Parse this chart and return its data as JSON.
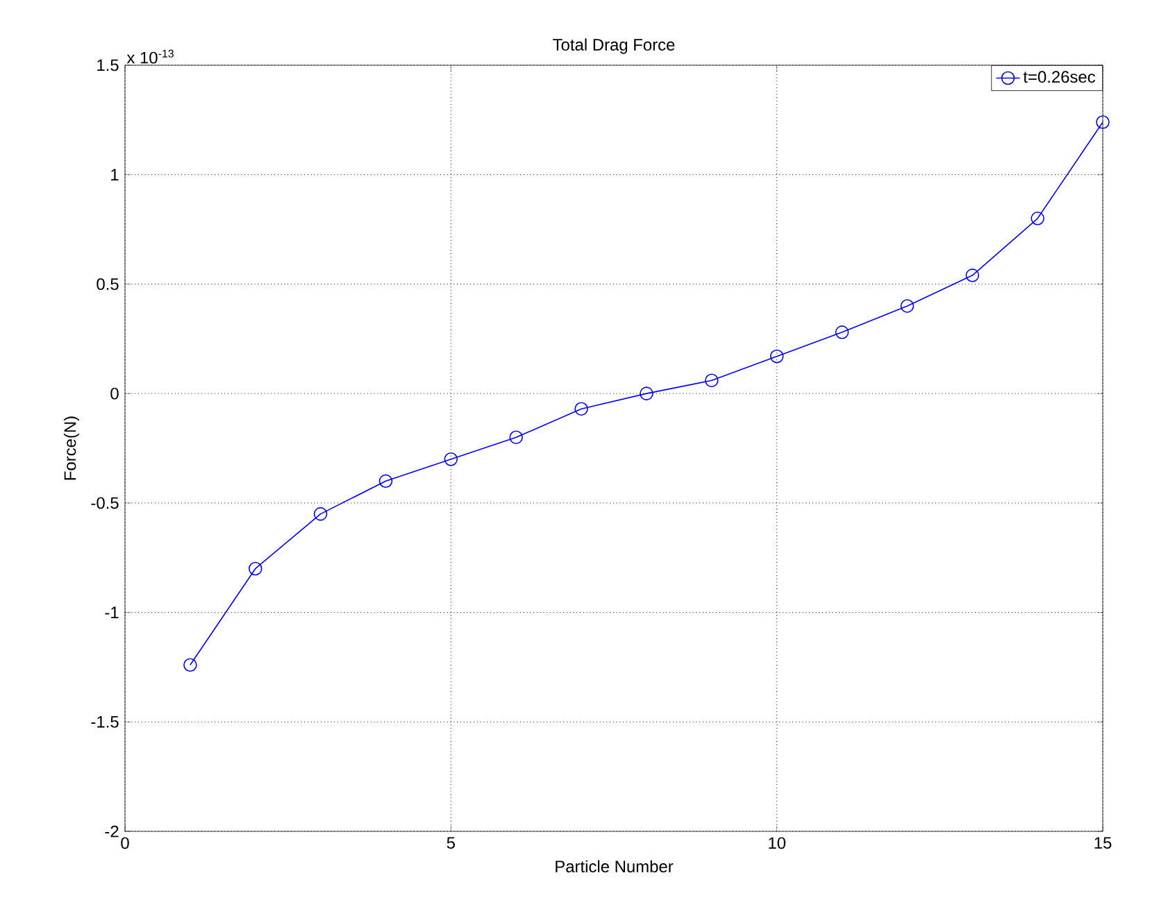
{
  "chart_data": {
    "type": "line",
    "title": "Total Drag Force",
    "xlabel": "Particle Number",
    "ylabel": "Force(N)",
    "annotations": [
      "x 10$^{-13}$"
    ],
    "x": [
      1,
      2,
      3,
      4,
      5,
      6,
      7,
      8,
      9,
      10,
      11,
      12,
      13,
      14,
      15
    ],
    "series": [
      {
        "name": "t=0.26sec",
        "color": "#0000ff",
        "values": [
          -1.24,
          -0.8,
          -0.55,
          -0.4,
          -0.3,
          -0.2,
          -0.07,
          0,
          0.06,
          0.17,
          0.28,
          0.4,
          0.54,
          0.8,
          1.24
        ]
      }
    ],
    "xlim": [
      0,
      15
    ],
    "ylim": [
      -2,
      1.5
    ],
    "xticks": [
      0,
      5,
      10,
      15
    ],
    "yticks": [
      -2,
      -1.5,
      -1,
      -0.5,
      0,
      0.5,
      1,
      1.5
    ],
    "grid": true,
    "legend": "top right",
    "marker": "circle",
    "line_style": "solid"
  }
}
